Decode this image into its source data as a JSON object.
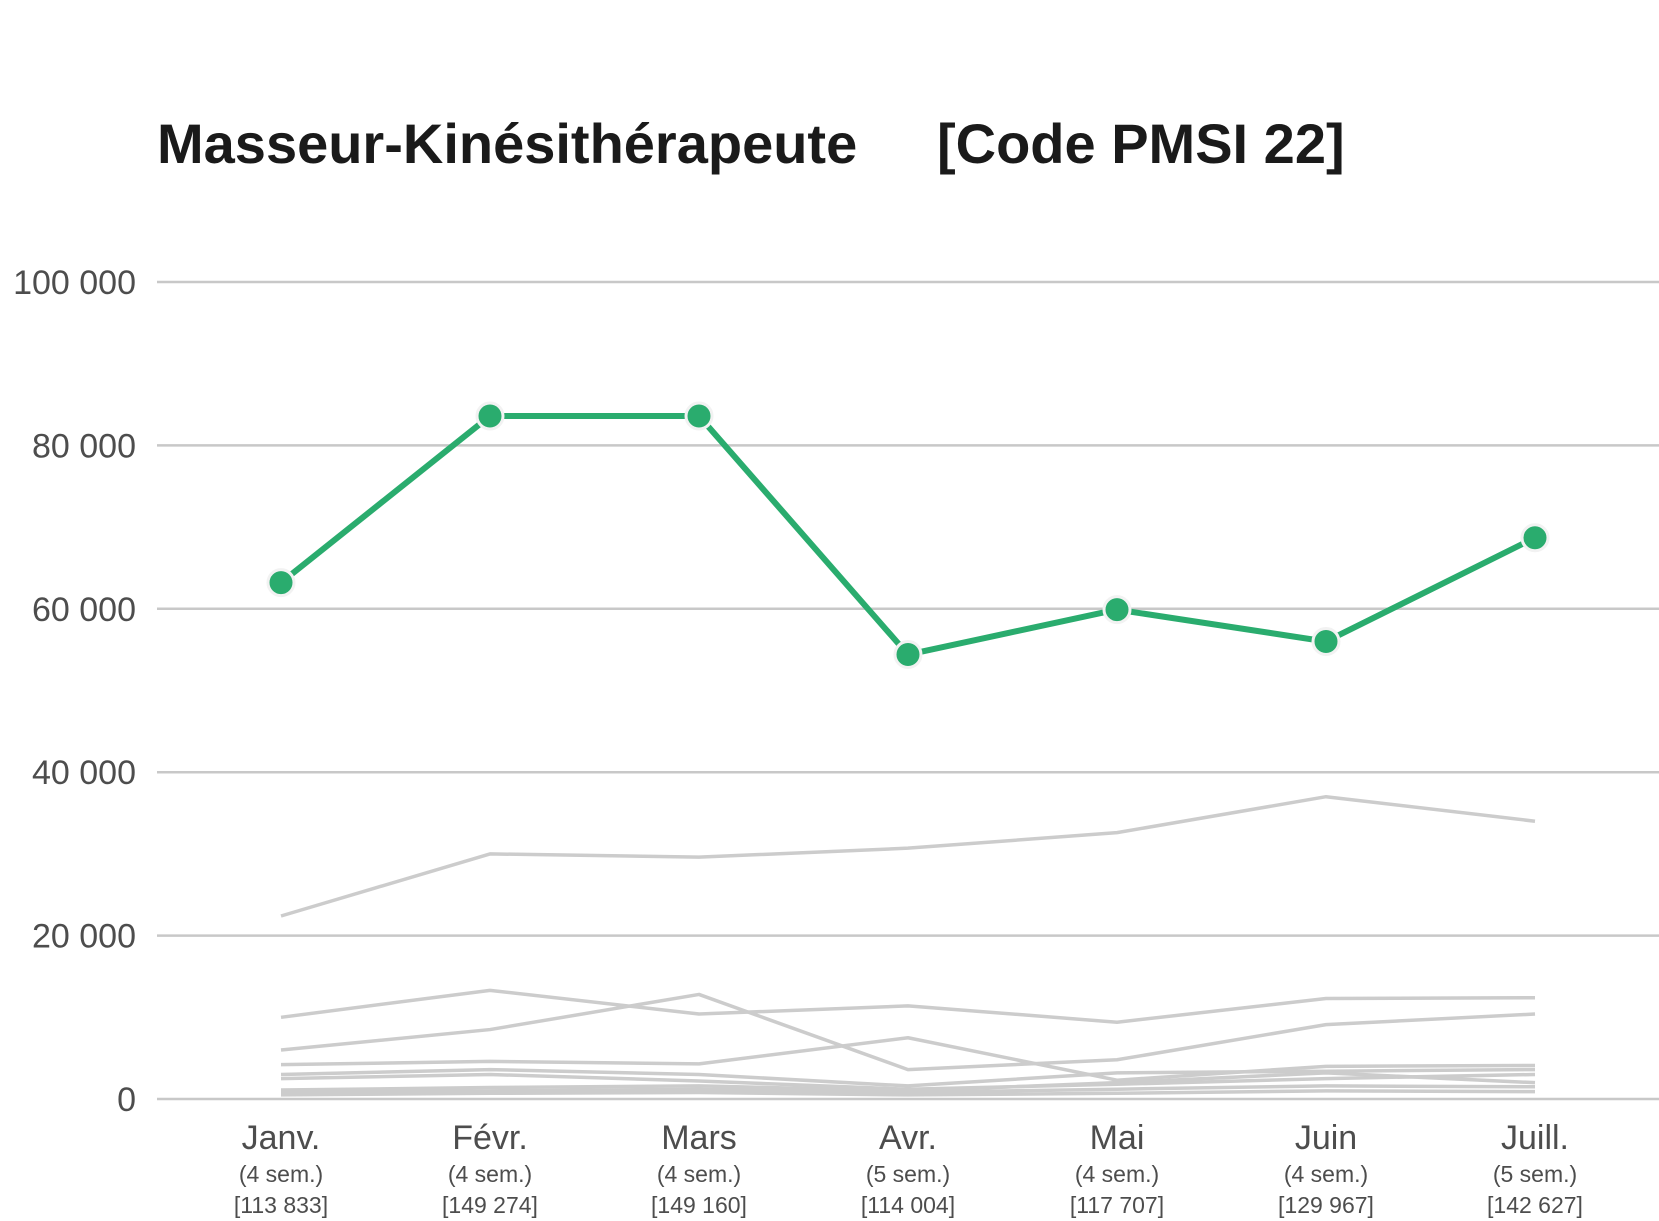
{
  "chart_data": {
    "type": "line",
    "title": "Masseur-Kinésithérapeute",
    "subtitle": "[Code PMSI 22]",
    "xlabel": "",
    "ylabel": "",
    "ylim": [
      0,
      100000
    ],
    "yticks": [
      0,
      20000,
      40000,
      60000,
      80000,
      100000
    ],
    "ytick_labels": [
      "0",
      "20 000",
      "40 000",
      "60 000",
      "80 000",
      "100 000"
    ],
    "grid": true,
    "legend": "none",
    "categories": [
      "Janv.",
      "Févr.",
      "Mars",
      "Avr.",
      "Mai",
      "Juin",
      "Juill."
    ],
    "category_weeks": [
      "(4 sem.)",
      "(4 sem.)",
      "(4 sem.)",
      "(5 sem.)",
      "(4 sem.)",
      "(4 sem.)",
      "(5 sem.)"
    ],
    "category_totals": [
      "[113 833]",
      "[149 274]",
      "[149 160]",
      "[114 004]",
      "[117 707]",
      "[129 967]",
      "[142 627]"
    ],
    "highlight_color": "#2aac6e",
    "background_line_color": "#cccccc",
    "grid_color": "#c8c8c8",
    "series": [
      {
        "highlight": true,
        "values": [
          63200,
          83600,
          83600,
          54400,
          59900,
          56000,
          68700
        ]
      },
      {
        "values": [
          22400,
          30000,
          29600,
          30700,
          32600,
          37000,
          34000
        ]
      },
      {
        "values": [
          10000,
          13300,
          10400,
          11400,
          9400,
          12300,
          12400
        ]
      },
      {
        "values": [
          6000,
          8500,
          12800,
          3600,
          4800,
          9100,
          10400
        ]
      },
      {
        "values": [
          4200,
          4600,
          4300,
          7500,
          2300,
          4000,
          4100
        ]
      },
      {
        "values": [
          3000,
          3600,
          3000,
          1600,
          3200,
          3400,
          3600
        ]
      },
      {
        "values": [
          2500,
          3000,
          2200,
          1200,
          1800,
          2500,
          3000
        ]
      },
      {
        "values": [
          1100,
          1400,
          1600,
          1000,
          2000,
          3200,
          2000
        ]
      },
      {
        "values": [
          800,
          1000,
          1200,
          800,
          1200,
          1600,
          1500
        ]
      },
      {
        "values": [
          500,
          700,
          800,
          500,
          700,
          1000,
          900
        ]
      }
    ]
  }
}
